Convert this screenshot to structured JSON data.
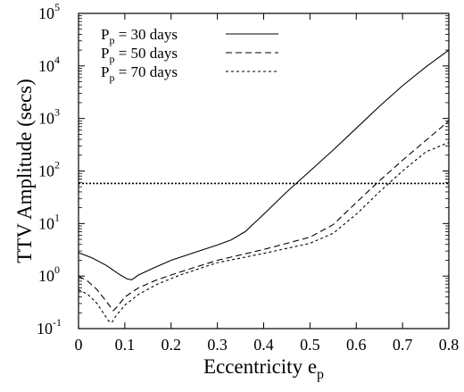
{
  "chart_data": {
    "type": "line",
    "xlabel": "Eccentricity e",
    "xlabel_sub": "p",
    "ylabel": "TTV Amplitude (secs)",
    "x_scale": "linear",
    "y_scale": "log",
    "xlim": [
      0,
      0.8
    ],
    "ylim": [
      0.1,
      100000
    ],
    "x_ticks": [
      0,
      0.1,
      0.2,
      0.3,
      0.4,
      0.5,
      0.6,
      0.7,
      0.8
    ],
    "x_tick_labels": [
      "0",
      "0.1",
      "0.2",
      "0.3",
      "0.4",
      "0.5",
      "0.6",
      "0.7",
      "0.8"
    ],
    "y_ticks": [
      {
        "value": 0.1,
        "base": "10",
        "exp": "-1"
      },
      {
        "value": 1,
        "base": "10",
        "exp": "0"
      },
      {
        "value": 10,
        "base": "10",
        "exp": "1"
      },
      {
        "value": 100,
        "base": "10",
        "exp": "2"
      },
      {
        "value": 1000,
        "base": "10",
        "exp": "3"
      },
      {
        "value": 10000,
        "base": "10",
        "exp": "4"
      },
      {
        "value": 100000,
        "base": "10",
        "exp": "5"
      }
    ],
    "legend_position": "top-left",
    "series": [
      {
        "name": "P = 30 days",
        "name_sub": "p",
        "style": "solid",
        "x": [
          0,
          0.03,
          0.06,
          0.09,
          0.105,
          0.115,
          0.13,
          0.16,
          0.2,
          0.25,
          0.3,
          0.33,
          0.36,
          0.4,
          0.45,
          0.5,
          0.55,
          0.6,
          0.65,
          0.7,
          0.75,
          0.8
        ],
        "y": [
          2.8,
          2.2,
          1.6,
          1.05,
          0.88,
          0.85,
          1.05,
          1.4,
          2.0,
          2.8,
          3.9,
          4.9,
          7,
          15,
          40,
          100,
          250,
          650,
          1700,
          4200,
          9500,
          20000
        ]
      },
      {
        "name": "P = 50 days",
        "name_sub": "p",
        "style": "dashed",
        "x": [
          0,
          0.02,
          0.04,
          0.06,
          0.075,
          0.085,
          0.1,
          0.13,
          0.17,
          0.22,
          0.3,
          0.4,
          0.5,
          0.55,
          0.6,
          0.65,
          0.7,
          0.75,
          0.8
        ],
        "y": [
          1.0,
          0.8,
          0.55,
          0.33,
          0.22,
          0.27,
          0.4,
          0.6,
          0.85,
          1.2,
          2.0,
          3.2,
          5.5,
          9.5,
          25,
          65,
          160,
          380,
          900
        ]
      },
      {
        "name": "P = 70 days",
        "name_sub": "p",
        "style": "dotted",
        "x": [
          0,
          0.02,
          0.04,
          0.055,
          0.065,
          0.072,
          0.08,
          0.1,
          0.13,
          0.17,
          0.22,
          0.3,
          0.4,
          0.5,
          0.55,
          0.6,
          0.65,
          0.7,
          0.75,
          0.8
        ],
        "y": [
          0.55,
          0.45,
          0.3,
          0.19,
          0.14,
          0.13,
          0.17,
          0.28,
          0.45,
          0.7,
          1.05,
          1.8,
          2.7,
          4.2,
          6.5,
          15,
          40,
          100,
          230,
          350
        ]
      }
    ],
    "reference_line": {
      "y": 58,
      "style": "dotted"
    }
  }
}
